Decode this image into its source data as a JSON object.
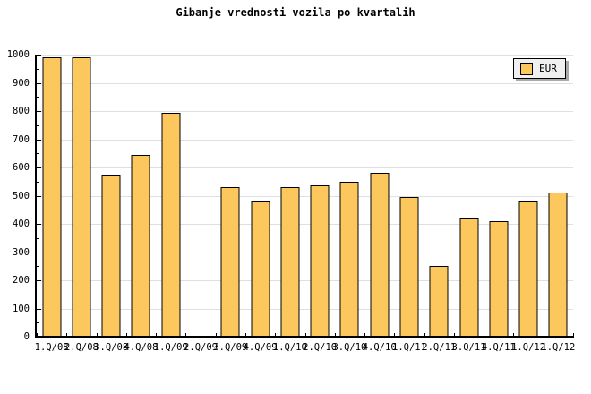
{
  "title": "Gibanje vrednosti vozila po kvartalih",
  "legend": {
    "label": "EUR"
  },
  "colors": {
    "bar_fill": "#FCC75C",
    "bar_border": "#000000",
    "grid": "#E0E0E0",
    "axis": "#000000",
    "legend_bg": "#F0F0F0",
    "legend_shadow": "#AAAAAA",
    "background": "#FFFFFF",
    "text": "#000000"
  },
  "chart_data": {
    "type": "bar",
    "title": "Gibanje vrednosti vozila po kvartalih",
    "series_name": "EUR",
    "categories": [
      "1.Q/08",
      "2.Q/08",
      "3.Q/08",
      "4.Q/08",
      "1.Q/09",
      "2.Q/09",
      "3.Q/09",
      "4.Q/09",
      "1.Q/10",
      "2.Q/10",
      "3.Q/10",
      "4.Q/10",
      "1.Q/11",
      "2.Q/11",
      "3.Q/11",
      "4.Q/11",
      "1.Q/12",
      "1.Q/12"
    ],
    "values": [
      990,
      990,
      575,
      645,
      795,
      null,
      530,
      480,
      530,
      535,
      550,
      580,
      495,
      250,
      420,
      410,
      480,
      510
    ],
    "xlabel": "",
    "ylabel": "",
    "ylim": [
      0,
      1000
    ],
    "ytick_step": 100,
    "ytick_minor_step": 50,
    "grid": "horizontal-major",
    "legend_position": "top-right",
    "bar_gap": "category slot ~33px, bar width ~21px, one empty category at 2.Q/09"
  }
}
